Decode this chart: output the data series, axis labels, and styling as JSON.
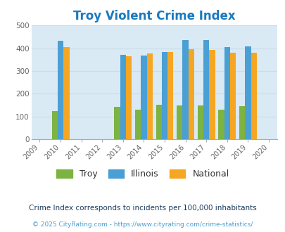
{
  "title": "Troy Violent Crime Index",
  "title_color": "#1a7abf",
  "plot_bg_color": "#daeaf5",
  "years": [
    2010,
    2013,
    2014,
    2015,
    2016,
    2017,
    2018,
    2019
  ],
  "troy": [
    125,
    143,
    131,
    153,
    148,
    148,
    130,
    145
  ],
  "illinois": [
    433,
    372,
    368,
    382,
    437,
    437,
    404,
    407
  ],
  "national": [
    404,
    365,
    376,
    383,
    396,
    394,
    379,
    379
  ],
  "troy_color": "#7cb342",
  "illinois_color": "#4a9fd4",
  "national_color": "#f5a623",
  "ylim": [
    0,
    500
  ],
  "yticks": [
    0,
    100,
    200,
    300,
    400,
    500
  ],
  "grid_color": "#c8dce8",
  "legend_labels": [
    "Troy",
    "Illinois",
    "National"
  ],
  "footnote1": "Crime Index corresponds to incidents per 100,000 inhabitants",
  "footnote2": "© 2025 CityRating.com - https://www.cityrating.com/crime-statistics/",
  "footnote1_color": "#1a3a5c",
  "footnote2_color": "#4a9fd4",
  "bar_width": 0.28,
  "all_years": [
    2009,
    2010,
    2011,
    2012,
    2013,
    2014,
    2015,
    2016,
    2017,
    2018,
    2019,
    2020
  ]
}
